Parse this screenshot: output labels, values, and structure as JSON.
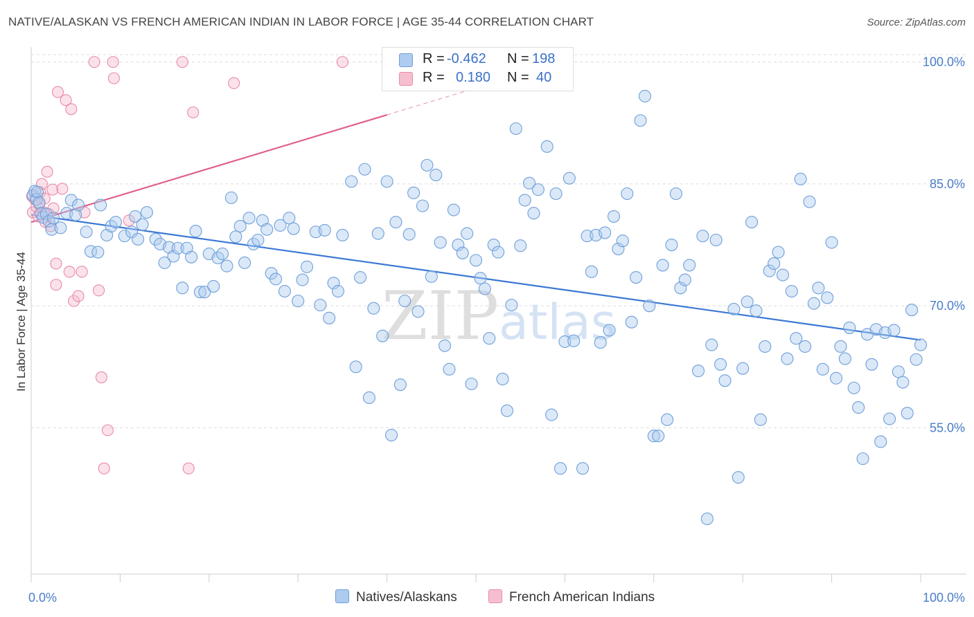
{
  "title": "NATIVE/ALASKAN VS FRENCH AMERICAN INDIAN IN LABOR FORCE | AGE 35-44 CORRELATION CHART",
  "source": "Source: ZipAtlas.com",
  "watermark": "ZIPatlas",
  "legend_stats": [
    {
      "r_label": "R =",
      "r_value": "-0.462",
      "n_label": "N =",
      "n_value": "198",
      "color": "#6f9fd8",
      "fill": "#aecbf0"
    },
    {
      "r_label": "R =",
      "r_value": "0.180",
      "n_label": "N =",
      "n_value": "40",
      "color": "#e88aa8",
      "fill": "#f6bfd0"
    }
  ],
  "chart_data": {
    "type": "scatter",
    "title": "NATIVE/ALASKAN VS FRENCH AMERICAN INDIAN IN LABOR FORCE | AGE 35-44 CORRELATION CHART",
    "xlabel": "",
    "ylabel": "In Labor Force | Age 35-44",
    "xlim": [
      0,
      100
    ],
    "ylim": [
      37,
      101.5
    ],
    "x_tick_labels": [
      "0.0%",
      "100.0%"
    ],
    "y_ticks": [
      55,
      70,
      85,
      100
    ],
    "y_tick_labels": [
      "55.0%",
      "70.0%",
      "85.0%",
      "100.0%"
    ],
    "grid": true,
    "legend_position": "bottom",
    "series": [
      {
        "name": "Natives/Alaskans",
        "color": "#3a78d4",
        "trend": {
          "x": [
            0,
            100
          ],
          "y": [
            81.2,
            65.8
          ]
        },
        "points": [
          [
            0.2,
            83.6
          ],
          [
            0.4,
            84.1
          ],
          [
            0.6,
            83.1
          ],
          [
            0.7,
            84.0
          ],
          [
            0.9,
            82.7
          ],
          [
            1.1,
            81.4
          ],
          [
            1.3,
            80.9
          ],
          [
            1.7,
            81.3
          ],
          [
            2.0,
            80.4
          ],
          [
            2.3,
            79.4
          ],
          [
            2.5,
            80.8
          ],
          [
            3.3,
            79.6
          ],
          [
            4.0,
            81.4
          ],
          [
            4.5,
            83.0
          ],
          [
            5.0,
            81.2
          ],
          [
            5.3,
            82.4
          ],
          [
            6.2,
            79.1
          ],
          [
            6.7,
            76.7
          ],
          [
            7.5,
            76.6
          ],
          [
            7.8,
            82.4
          ],
          [
            8.5,
            78.7
          ],
          [
            9.0,
            79.8
          ],
          [
            9.5,
            80.3
          ],
          [
            10.5,
            78.6
          ],
          [
            11.3,
            79.1
          ],
          [
            11.7,
            81.0
          ],
          [
            12.0,
            78.2
          ],
          [
            12.5,
            80.0
          ],
          [
            13.0,
            81.5
          ],
          [
            14.0,
            78.2
          ],
          [
            14.5,
            77.6
          ],
          [
            15.0,
            75.3
          ],
          [
            15.5,
            77.2
          ],
          [
            16.0,
            76.1
          ],
          [
            16.5,
            77.1
          ],
          [
            17.0,
            72.2
          ],
          [
            17.5,
            77.1
          ],
          [
            18.0,
            76.0
          ],
          [
            18.5,
            79.2
          ],
          [
            19.0,
            71.7
          ],
          [
            19.5,
            71.7
          ],
          [
            20.0,
            76.4
          ],
          [
            20.5,
            72.4
          ],
          [
            21.0,
            75.9
          ],
          [
            21.5,
            76.4
          ],
          [
            22.0,
            74.9
          ],
          [
            22.5,
            83.3
          ],
          [
            23.0,
            78.5
          ],
          [
            23.5,
            79.8
          ],
          [
            24.0,
            75.3
          ],
          [
            24.5,
            80.8
          ],
          [
            25.0,
            77.6
          ],
          [
            25.5,
            78.1
          ],
          [
            26.0,
            80.5
          ],
          [
            26.5,
            79.4
          ],
          [
            27.0,
            74.0
          ],
          [
            27.5,
            73.3
          ],
          [
            28.0,
            79.9
          ],
          [
            28.5,
            71.8
          ],
          [
            29.0,
            80.8
          ],
          [
            29.5,
            79.5
          ],
          [
            30.0,
            70.6
          ],
          [
            30.5,
            73.2
          ],
          [
            31.0,
            74.8
          ],
          [
            32.0,
            79.1
          ],
          [
            32.5,
            70.1
          ],
          [
            33.0,
            79.3
          ],
          [
            33.5,
            68.5
          ],
          [
            34.0,
            72.8
          ],
          [
            34.5,
            71.8
          ],
          [
            35.0,
            78.7
          ],
          [
            36.0,
            85.3
          ],
          [
            36.5,
            62.5
          ],
          [
            37.0,
            73.5
          ],
          [
            37.5,
            86.8
          ],
          [
            38.0,
            58.7
          ],
          [
            38.5,
            69.7
          ],
          [
            39.0,
            78.9
          ],
          [
            39.5,
            66.3
          ],
          [
            40.0,
            85.3
          ],
          [
            40.5,
            54.1
          ],
          [
            41.0,
            80.3
          ],
          [
            41.5,
            60.3
          ],
          [
            42.0,
            70.6
          ],
          [
            42.5,
            78.8
          ],
          [
            43.0,
            83.9
          ],
          [
            43.5,
            69.3
          ],
          [
            44.0,
            82.3
          ],
          [
            44.5,
            87.3
          ],
          [
            45.0,
            73.6
          ],
          [
            45.5,
            86.1
          ],
          [
            46.0,
            77.8
          ],
          [
            46.5,
            65.1
          ],
          [
            47.0,
            62.2
          ],
          [
            47.5,
            81.8
          ],
          [
            48.0,
            77.5
          ],
          [
            48.5,
            76.5
          ],
          [
            49.0,
            78.9
          ],
          [
            49.5,
            60.4
          ],
          [
            50.0,
            75.6
          ],
          [
            50.5,
            73.4
          ],
          [
            51.0,
            72.1
          ],
          [
            51.5,
            66.0
          ],
          [
            52.0,
            77.5
          ],
          [
            52.5,
            76.6
          ],
          [
            53.0,
            61.0
          ],
          [
            53.5,
            57.1
          ],
          [
            54.0,
            70.1
          ],
          [
            54.5,
            91.8
          ],
          [
            55.0,
            77.4
          ],
          [
            55.5,
            83.0
          ],
          [
            56.0,
            85.1
          ],
          [
            56.5,
            81.4
          ],
          [
            57.0,
            84.3
          ],
          [
            58.0,
            89.6
          ],
          [
            58.5,
            56.6
          ],
          [
            59.0,
            83.8
          ],
          [
            59.5,
            50.0
          ],
          [
            60.0,
            65.6
          ],
          [
            60.5,
            85.7
          ],
          [
            61.0,
            65.7
          ],
          [
            62.0,
            50.0
          ],
          [
            62.5,
            78.6
          ],
          [
            63.0,
            74.2
          ],
          [
            63.5,
            78.7
          ],
          [
            64.0,
            65.5
          ],
          [
            64.5,
            79.0
          ],
          [
            65.0,
            67.0
          ],
          [
            65.5,
            81.0
          ],
          [
            66.0,
            77.0
          ],
          [
            66.5,
            78.0
          ],
          [
            67.0,
            83.8
          ],
          [
            67.5,
            68.0
          ],
          [
            68.0,
            73.5
          ],
          [
            68.5,
            92.8
          ],
          [
            69.0,
            95.8
          ],
          [
            69.5,
            70.0
          ],
          [
            70.0,
            54.0
          ],
          [
            70.5,
            54.0
          ],
          [
            71.0,
            75.0
          ],
          [
            71.5,
            56.0
          ],
          [
            72.0,
            77.5
          ],
          [
            72.5,
            83.8
          ],
          [
            73.0,
            72.2
          ],
          [
            73.5,
            73.2
          ],
          [
            74.0,
            75.0
          ],
          [
            75.0,
            62.0
          ],
          [
            75.5,
            78.6
          ],
          [
            76.0,
            43.8
          ],
          [
            76.5,
            65.2
          ],
          [
            77.0,
            78.1
          ],
          [
            77.5,
            62.8
          ],
          [
            78.0,
            60.8
          ],
          [
            79.0,
            69.6
          ],
          [
            79.5,
            48.9
          ],
          [
            80.0,
            62.3
          ],
          [
            80.5,
            70.5
          ],
          [
            81.0,
            80.3
          ],
          [
            81.5,
            69.4
          ],
          [
            82.0,
            56.0
          ],
          [
            82.5,
            65.0
          ],
          [
            83.0,
            74.3
          ],
          [
            83.5,
            75.2
          ],
          [
            84.0,
            76.6
          ],
          [
            84.5,
            73.8
          ],
          [
            85.0,
            63.5
          ],
          [
            85.5,
            71.8
          ],
          [
            86.0,
            66.0
          ],
          [
            86.5,
            85.6
          ],
          [
            87.0,
            65.0
          ],
          [
            87.5,
            82.8
          ],
          [
            88.0,
            70.3
          ],
          [
            88.5,
            72.2
          ],
          [
            89.0,
            62.2
          ],
          [
            89.5,
            71.0
          ],
          [
            90.0,
            77.8
          ],
          [
            90.5,
            61.1
          ],
          [
            91.0,
            65.0
          ],
          [
            91.5,
            63.5
          ],
          [
            92.0,
            67.3
          ],
          [
            92.5,
            59.9
          ],
          [
            93.0,
            57.5
          ],
          [
            93.5,
            51.2
          ],
          [
            94.0,
            66.5
          ],
          [
            94.5,
            62.8
          ],
          [
            95.0,
            67.1
          ],
          [
            95.5,
            53.3
          ],
          [
            96.0,
            66.7
          ],
          [
            96.5,
            56.1
          ],
          [
            97.0,
            67.0
          ],
          [
            97.5,
            61.9
          ],
          [
            98.0,
            60.6
          ],
          [
            98.5,
            56.8
          ],
          [
            99.0,
            69.5
          ],
          [
            99.5,
            63.4
          ],
          [
            100.0,
            65.2
          ]
        ]
      },
      {
        "name": "French American Indians",
        "color": "#e05e8c",
        "trend": {
          "x": [
            0,
            40
          ],
          "y": [
            80.3,
            93.5
          ]
        },
        "trend_extended": {
          "x": [
            40,
            50
          ],
          "y": [
            93.5,
            96.8
          ]
        },
        "points": [
          [
            0.2,
            81.5
          ],
          [
            0.4,
            83.1
          ],
          [
            0.6,
            82.2
          ],
          [
            0.8,
            81.0
          ],
          [
            1.0,
            84.0
          ],
          [
            1.2,
            85.0
          ],
          [
            1.4,
            81.5
          ],
          [
            1.6,
            80.3
          ],
          [
            1.8,
            86.5
          ],
          [
            2.0,
            81.3
          ],
          [
            2.2,
            79.8
          ],
          [
            2.4,
            84.3
          ],
          [
            2.5,
            82.0
          ],
          [
            2.8,
            75.2
          ],
          [
            2.8,
            72.6
          ],
          [
            3.0,
            96.3
          ],
          [
            3.5,
            84.4
          ],
          [
            3.9,
            95.3
          ],
          [
            4.3,
            74.2
          ],
          [
            4.5,
            94.2
          ],
          [
            4.8,
            70.6
          ],
          [
            5.3,
            71.2
          ],
          [
            5.7,
            74.2
          ],
          [
            6.0,
            81.5
          ],
          [
            7.1,
            100
          ],
          [
            7.6,
            71.9
          ],
          [
            7.9,
            61.2
          ],
          [
            8.2,
            50.0
          ],
          [
            8.6,
            54.7
          ],
          [
            9.2,
            100
          ],
          [
            9.3,
            98.0
          ],
          [
            17.0,
            100
          ],
          [
            17.7,
            50.0
          ],
          [
            18.2,
            93.8
          ],
          [
            22.8,
            97.4
          ],
          [
            35.0,
            100
          ],
          [
            11.0,
            80.5
          ],
          [
            0.1,
            83.5
          ],
          [
            1.5,
            83.2
          ],
          [
            0.9,
            82.5
          ]
        ]
      }
    ]
  }
}
